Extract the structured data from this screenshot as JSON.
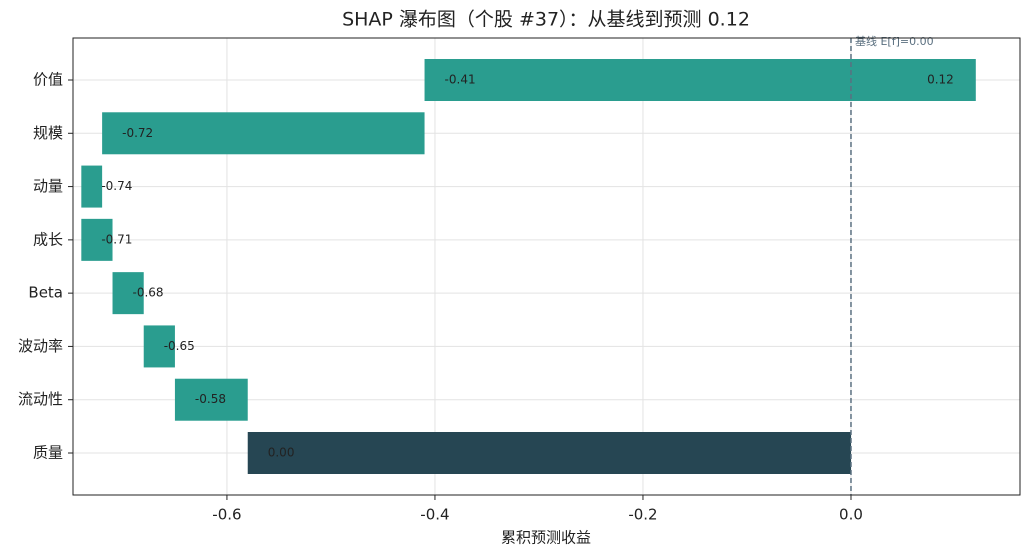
{
  "chart_data": {
    "type": "waterfall",
    "title": "SHAP 瀑布图（个股 #37）：从基线到预测 0.12",
    "x_label": "累积预测收益",
    "categories": [
      "质量",
      "流动性",
      "波动率",
      "Beta",
      "成长",
      "动量",
      "规模",
      "价值"
    ],
    "values": [
      -0.58,
      -0.07,
      -0.03,
      -0.03,
      -0.03,
      0.02,
      0.31,
      0.53
    ],
    "colors": [
      "#264653",
      "#2a9d8f",
      "#2a9d8f",
      "#2a9d8f",
      "#2a9d8f",
      "#2a9d8f",
      "#2a9d8f",
      "#2a9d8f"
    ],
    "start_labels": [
      "0.00",
      "-0.58",
      "-0.65",
      "-0.68",
      "-0.71",
      "-0.74",
      "-0.72",
      "-0.41"
    ],
    "end_label": "0.12",
    "baseline": 0,
    "baseline_label": "基线 E[f]=0.00",
    "baseline_color": "#5b7080",
    "xlim": [
      -0.748,
      0.1625
    ],
    "xticks": [
      -0.6,
      -0.4,
      -0.2,
      {
        "value": 0,
        "label": "0.0"
      }
    ],
    "grid": true
  }
}
